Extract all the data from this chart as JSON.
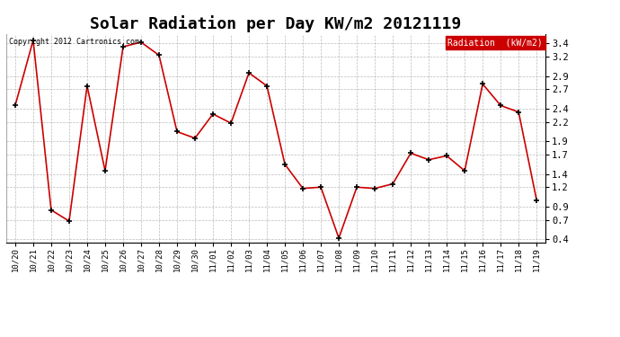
{
  "title": "Solar Radiation per Day KW/m2 20121119",
  "copyright": "Copyright 2012 Cartronics.com",
  "legend_label": "Radiation  (kW/m2)",
  "dates": [
    "10/20",
    "10/21",
    "10/22",
    "10/23",
    "10/24",
    "10/25",
    "10/26",
    "10/27",
    "10/28",
    "10/29",
    "10/30",
    "11/01",
    "11/02",
    "11/03",
    "11/04",
    "11/05",
    "11/06",
    "11/07",
    "11/08",
    "11/09",
    "11/10",
    "11/11",
    "11/12",
    "11/13",
    "11/14",
    "11/15",
    "11/16",
    "11/17",
    "11/18",
    "11/19"
  ],
  "values": [
    2.45,
    3.45,
    0.85,
    0.68,
    2.75,
    1.45,
    3.35,
    3.42,
    3.22,
    2.05,
    1.95,
    2.32,
    2.18,
    2.95,
    2.75,
    1.55,
    1.18,
    1.2,
    0.42,
    1.2,
    1.18,
    1.25,
    1.72,
    1.62,
    1.68,
    1.45,
    2.78,
    2.45,
    2.35,
    1.0
  ],
  "line_color": "#cc0000",
  "marker": "+",
  "ylim": [
    0.35,
    3.55
  ],
  "yticks": [
    0.4,
    0.7,
    0.9,
    1.2,
    1.4,
    1.7,
    1.9,
    2.2,
    2.4,
    2.7,
    2.9,
    3.2,
    3.4
  ],
  "bg_color": "#ffffff",
  "grid_color": "#aaaaaa",
  "title_fontsize": 13,
  "legend_bg": "#cc0000",
  "legend_fg": "#ffffff"
}
